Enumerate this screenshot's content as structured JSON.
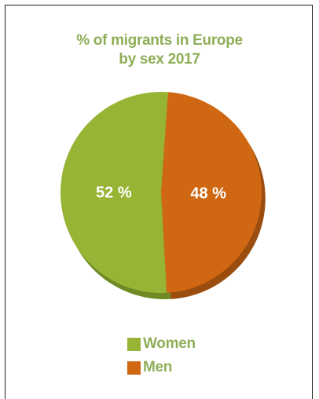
{
  "chart_data": {
    "type": "pie",
    "title_line1": "% of migrants in Europe",
    "title_line2": "by sex 2017",
    "slices": [
      {
        "label": "Women",
        "value": 52,
        "display": "52 %",
        "color": "#97b434"
      },
      {
        "label": "Men",
        "value": 48,
        "display": "48 %",
        "color": "#d06813"
      }
    ],
    "legend_placement": "bottom-center",
    "colors": {
      "title": "#8fae58",
      "legend_text": "#8fae58",
      "women_shadow": "#6f8a25",
      "men_shadow": "#9a4d0e",
      "label_text": "#ffffff"
    }
  }
}
